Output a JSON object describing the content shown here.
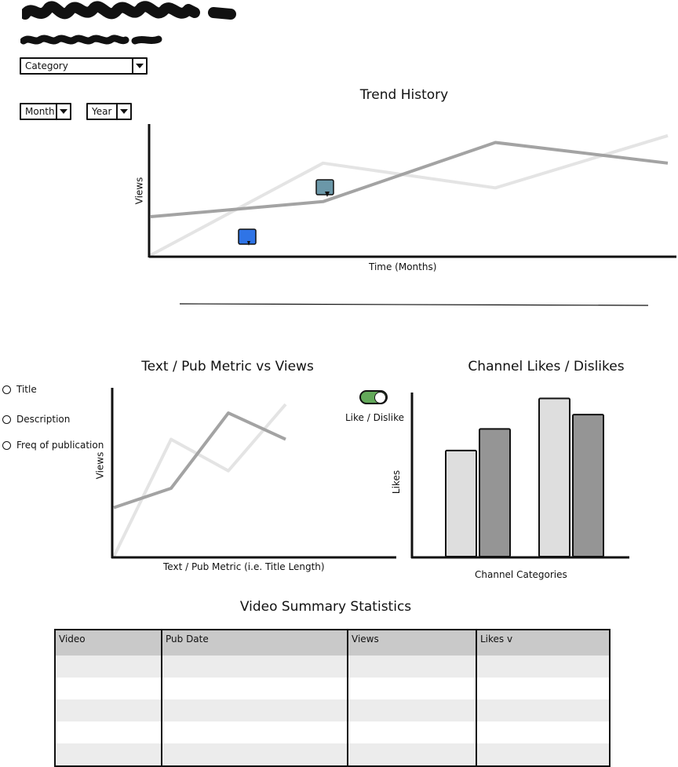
{
  "filters": {
    "category": {
      "value": "Category"
    },
    "month": {
      "value": "Month"
    },
    "year": {
      "value": "Year"
    }
  },
  "trend": {
    "title": "Trend History",
    "ylabel": "Views",
    "xlabel": "Time (Months)"
  },
  "text_metric": {
    "title": "Text / Pub Metric vs Views",
    "ylabel": "Views",
    "xlabel": "Text  / Pub Metric (i.e. Title Length)",
    "options": [
      "Title",
      "Description",
      "Freq of publication"
    ]
  },
  "likes": {
    "title": "Channel Likes / Dislikes",
    "toggle_label": "Like / Dislike",
    "ylabel": "Likes",
    "xlabel": "Channel Categories"
  },
  "summary": {
    "title": "Video Summary Statistics",
    "columns": [
      "Video",
      "Pub Date",
      "Views",
      "Likes v"
    ]
  },
  "colors": {
    "series_dark": "#a3a3a3",
    "series_light": "#e4e4e4",
    "bar_light": "#dedede",
    "bar_dark": "#959595",
    "toggle_on": "#63a95a",
    "marker_blue": "#2f74e6",
    "marker_teal": "#6b97a8"
  },
  "icons": [
    "chevron-down-icon",
    "comment-marker-icon",
    "radio-icon",
    "toggle-icon"
  ],
  "chart_data": [
    {
      "type": "line",
      "title": "Trend History",
      "xlabel": "Time (Months)",
      "ylabel": "Views",
      "grid": false,
      "x": [
        0,
        1,
        2,
        3
      ],
      "series": [
        {
          "values": [
            0.28,
            0.39,
            0.82,
            0.67
          ]
        },
        {
          "values": [
            0.0,
            0.67,
            0.49,
            0.87
          ]
        }
      ]
    },
    {
      "type": "line",
      "title": "Text / Pub Metric vs Views",
      "xlabel": "Text  / Pub Metric (i.e. Title Length)",
      "ylabel": "Views",
      "grid": false,
      "x": [
        0,
        1,
        2,
        3
      ],
      "series": [
        {
          "values": [
            0.28,
            0.39,
            0.82,
            0.67
          ]
        },
        {
          "values": [
            0.0,
            0.67,
            0.49,
            0.87
          ]
        }
      ]
    },
    {
      "type": "bar",
      "title": "Channel Likes / Dislikes",
      "xlabel": "Channel Categories",
      "ylabel": "Likes",
      "grid": false,
      "categories": [
        "",
        ""
      ],
      "series": [
        {
          "values": [
            0.59,
            0.88
          ]
        },
        {
          "values": [
            0.71,
            0.79
          ]
        }
      ]
    }
  ]
}
